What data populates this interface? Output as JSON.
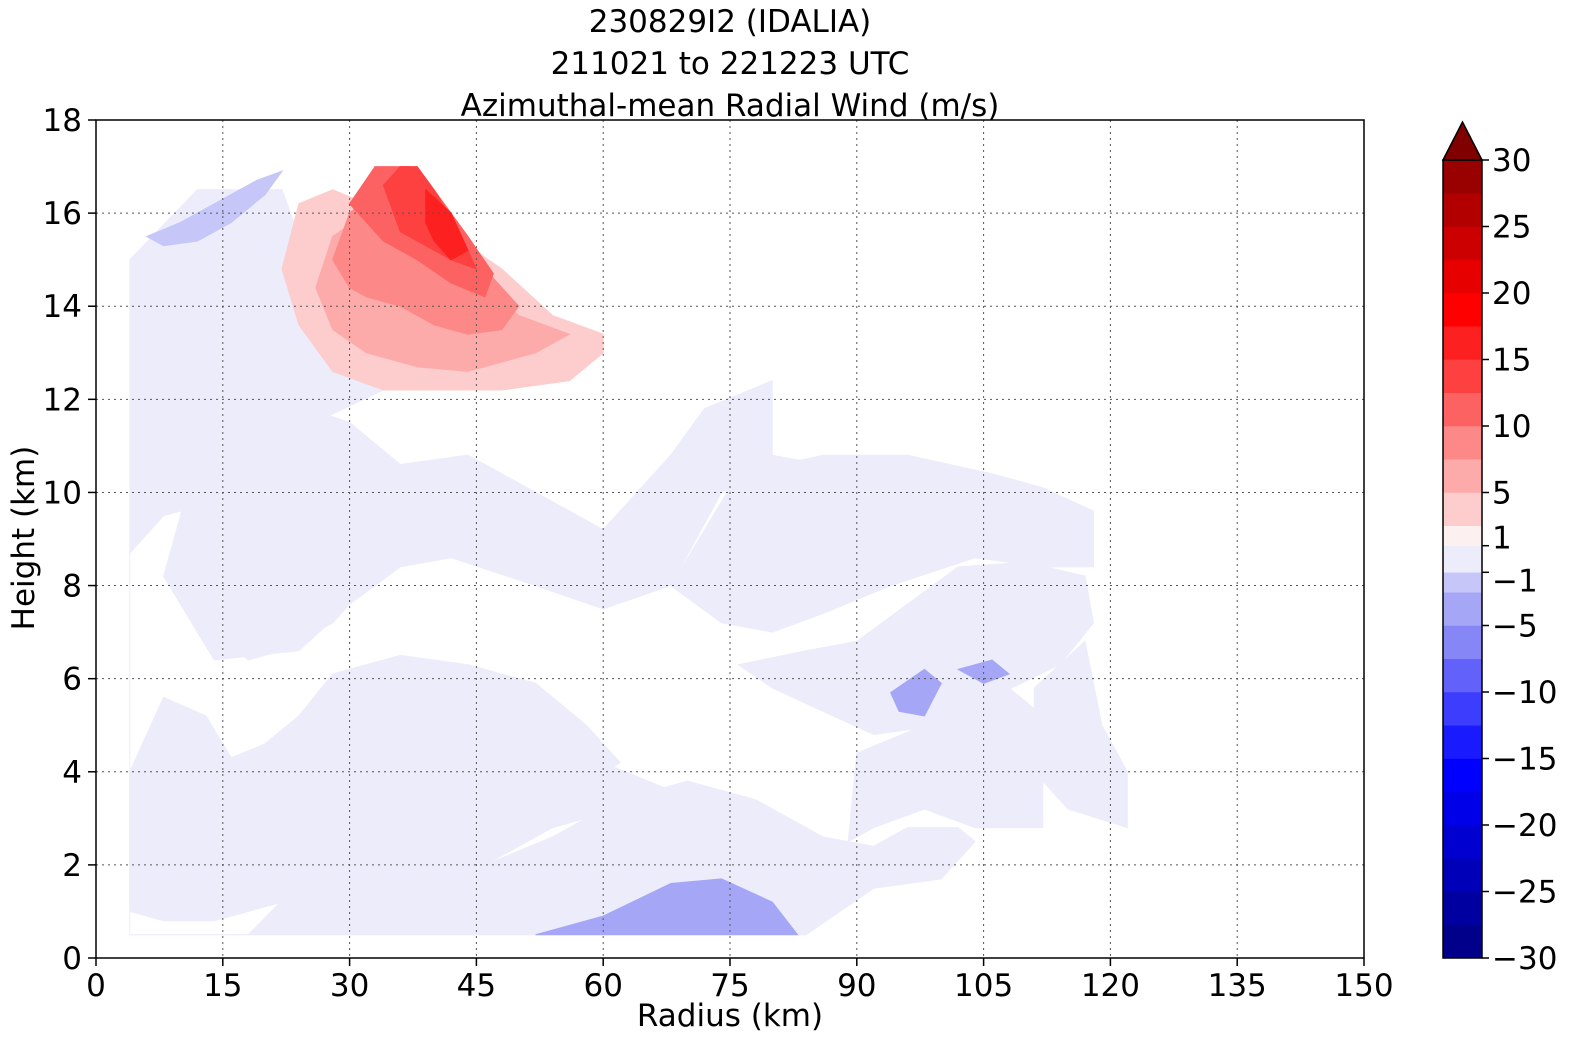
{
  "chart_data": {
    "type": "heatmap",
    "title": [
      "230829I2 (IDALIA)",
      "211021 to 221223 UTC",
      "Azimuthal-mean Radial Wind (m/s)"
    ],
    "xlabel": "Radius (km)",
    "ylabel": "Height (km)",
    "xlim": [
      0,
      150
    ],
    "ylim": [
      0,
      18
    ],
    "x_ticks": [
      "0",
      "15",
      "30",
      "45",
      "60",
      "75",
      "90",
      "105",
      "120",
      "135",
      "150"
    ],
    "y_ticks": [
      "0",
      "2",
      "4",
      "6",
      "8",
      "10",
      "12",
      "14",
      "16",
      "18"
    ],
    "grid": true,
    "colorbar": {
      "levels": [
        -30,
        -27.5,
        -25,
        -22.5,
        -20,
        -17.5,
        -15,
        -12.5,
        -10,
        -7.5,
        -5,
        -2.5,
        -1,
        1,
        2.5,
        5,
        7.5,
        10,
        12.5,
        15,
        17.5,
        20,
        22.5,
        25,
        27.5,
        30
      ],
      "tick_labels": [
        {
          "value": 30,
          "label": "30"
        },
        {
          "value": 25,
          "label": "25"
        },
        {
          "value": 20,
          "label": "20"
        },
        {
          "value": 15,
          "label": "15"
        },
        {
          "value": 10,
          "label": "10"
        },
        {
          "value": 5,
          "label": "5"
        },
        {
          "value": 1,
          "label": "1"
        },
        {
          "value": -1,
          "label": "−1"
        },
        {
          "value": -5,
          "label": "−5"
        },
        {
          "value": -10,
          "label": "−10"
        },
        {
          "value": -15,
          "label": "−15"
        },
        {
          "value": -20,
          "label": "−20"
        },
        {
          "value": -25,
          "label": "−25"
        },
        {
          "value": -30,
          "label": "−30"
        }
      ],
      "colors": [
        "#00008b",
        "#0000a0",
        "#0000b8",
        "#0000d0",
        "#0000e8",
        "#0000ff",
        "#1a1aff",
        "#3d3dfd",
        "#6262fa",
        "#8686f7",
        "#a6a6f7",
        "#c6c6f9",
        "#ececfb",
        "#fdf0f0",
        "#fdcccc",
        "#fdaaaa",
        "#fd8888",
        "#fd6262",
        "#fd4040",
        "#fd2020",
        "#ff0000",
        "#e60000",
        "#cc0000",
        "#b20000",
        "#990000",
        "#800000"
      ],
      "extend": "max"
    },
    "regions": [
      {
        "name": "weak-positive-upper-left",
        "value": 0.5,
        "points": [
          [
            4,
            0.5
          ],
          [
            4,
            15
          ],
          [
            12,
            16.5
          ],
          [
            22,
            16.5
          ],
          [
            25,
            15
          ],
          [
            31,
            12.8
          ],
          [
            42,
            12.5
          ],
          [
            60,
            13
          ],
          [
            56,
            12.4
          ],
          [
            46,
            12.2
          ],
          [
            34,
            12.2
          ],
          [
            27,
            11.6
          ],
          [
            20,
            10.8
          ],
          [
            14,
            9.8
          ],
          [
            8,
            9.5
          ],
          [
            4,
            8.7
          ]
        ]
      },
      {
        "name": "weak-positive-lower-left",
        "value": 0.5,
        "points": [
          [
            4,
            0.5
          ],
          [
            18,
            0.5
          ],
          [
            24,
            1.6
          ],
          [
            28,
            2.6
          ],
          [
            40,
            3.7
          ],
          [
            46,
            4.0
          ],
          [
            52,
            4.3
          ],
          [
            60,
            4.2
          ],
          [
            68,
            3.6
          ],
          [
            72,
            3.2
          ],
          [
            66,
            2.9
          ],
          [
            58,
            3.0
          ],
          [
            54,
            2.8
          ],
          [
            50,
            2.4
          ],
          [
            46,
            2.0
          ],
          [
            40,
            1.5
          ],
          [
            34,
            1.0
          ],
          [
            26,
            0.8
          ],
          [
            20,
            0.5
          ]
        ]
      },
      {
        "name": "weak-positive-lower-left-b",
        "value": 0.5,
        "points": [
          [
            4,
            1.0
          ],
          [
            4,
            4.0
          ],
          [
            8,
            5.6
          ],
          [
            13,
            5.2
          ],
          [
            16,
            4.3
          ],
          [
            20,
            4.6
          ],
          [
            24,
            5.2
          ],
          [
            28,
            6.1
          ],
          [
            36,
            6.5
          ],
          [
            44,
            6.3
          ],
          [
            52,
            5.9
          ],
          [
            58,
            5.0
          ],
          [
            62,
            4.2
          ],
          [
            56,
            3.5
          ],
          [
            48,
            3.2
          ],
          [
            42,
            2.8
          ],
          [
            36,
            2.2
          ],
          [
            30,
            1.7
          ],
          [
            22,
            1.2
          ],
          [
            14,
            0.8
          ],
          [
            8,
            0.8
          ]
        ]
      },
      {
        "name": "weak-positive-center",
        "value": 0.5,
        "points": [
          [
            14,
            7.0
          ],
          [
            16,
            8.6
          ],
          [
            22,
            9.2
          ],
          [
            28,
            9.6
          ],
          [
            34,
            9.5
          ],
          [
            32,
            8.0
          ],
          [
            28,
            7.2
          ],
          [
            22,
            6.6
          ],
          [
            18,
            6.4
          ]
        ]
      },
      {
        "name": "weak-positive-upper-right",
        "value": 0.5,
        "points": [
          [
            68,
            8.0
          ],
          [
            76,
            10.4
          ],
          [
            86,
            10.8
          ],
          [
            96,
            10.8
          ],
          [
            106,
            10.4
          ],
          [
            112,
            10.1
          ],
          [
            118,
            9.6
          ],
          [
            118,
            8.4
          ],
          [
            112,
            8.4
          ],
          [
            104,
            8.6
          ],
          [
            94,
            8.0
          ],
          [
            86,
            7.4
          ],
          [
            80,
            7.0
          ],
          [
            74,
            7.2
          ]
        ]
      },
      {
        "name": "weak-positive-right-lower",
        "value": 0.5,
        "points": [
          [
            89,
            2.5
          ],
          [
            90,
            4.4
          ],
          [
            98,
            5.0
          ],
          [
            104,
            5.4
          ],
          [
            108,
            5.8
          ],
          [
            112,
            5.2
          ],
          [
            112,
            2.8
          ],
          [
            104,
            2.8
          ],
          [
            98,
            3.2
          ],
          [
            92,
            2.8
          ]
        ]
      },
      {
        "name": "weak-positive-far-right-lower",
        "value": 0.5,
        "points": [
          [
            111,
            4.0
          ],
          [
            111,
            5.8
          ],
          [
            117,
            6.8
          ],
          [
            119,
            5.0
          ],
          [
            122,
            4.0
          ],
          [
            122,
            2.8
          ],
          [
            115,
            3.2
          ]
        ]
      },
      {
        "name": "weak-negative-center",
        "value": -0.5,
        "points": [
          [
            10,
            9.5
          ],
          [
            12,
            11.0
          ],
          [
            22,
            12.0
          ],
          [
            30,
            11.5
          ],
          [
            36,
            10.6
          ],
          [
            44,
            10.8
          ],
          [
            52,
            10.0
          ],
          [
            60,
            9.2
          ],
          [
            68,
            10.8
          ],
          [
            72,
            11.8
          ],
          [
            80,
            12.4
          ],
          [
            80,
            10.8
          ],
          [
            86,
            10.6
          ],
          [
            74,
            10.0
          ],
          [
            68,
            8.0
          ],
          [
            60,
            7.5
          ],
          [
            52,
            8.0
          ],
          [
            42,
            8.6
          ],
          [
            36,
            8.4
          ],
          [
            30,
            7.6
          ],
          [
            24,
            6.6
          ],
          [
            14,
            6.4
          ],
          [
            8,
            8.2
          ]
        ]
      },
      {
        "name": "weak-negative-lower-mid",
        "value": -0.5,
        "points": [
          [
            20,
            0.5
          ],
          [
            28,
            0.9
          ],
          [
            38,
            1.4
          ],
          [
            46,
            2.0
          ],
          [
            54,
            2.6
          ],
          [
            62,
            3.4
          ],
          [
            70,
            3.8
          ],
          [
            78,
            3.4
          ],
          [
            86,
            2.6
          ],
          [
            92,
            2.4
          ],
          [
            96,
            2.8
          ],
          [
            102,
            2.8
          ],
          [
            104,
            2.5
          ],
          [
            100,
            1.7
          ],
          [
            92,
            1.5
          ],
          [
            84,
            0.5
          ],
          [
            60,
            0.5
          ]
        ]
      },
      {
        "name": "weak-negative-right-mid",
        "value": -0.5,
        "points": [
          [
            76,
            6.3
          ],
          [
            84,
            6.6
          ],
          [
            90,
            6.8
          ],
          [
            96,
            7.6
          ],
          [
            102,
            8.4
          ],
          [
            110,
            8.5
          ],
          [
            117,
            8.2
          ],
          [
            118,
            7.2
          ],
          [
            114,
            6.3
          ],
          [
            106,
            5.6
          ],
          [
            100,
            5.0
          ],
          [
            92,
            4.8
          ],
          [
            86,
            5.3
          ],
          [
            80,
            5.8
          ]
        ]
      },
      {
        "name": "weak-negative-upper-left-tip",
        "value": -2,
        "points": [
          [
            6,
            15.5
          ],
          [
            10,
            15.8
          ],
          [
            14,
            16.2
          ],
          [
            19,
            16.7
          ],
          [
            22,
            16.9
          ],
          [
            20,
            16.4
          ],
          [
            16,
            15.8
          ],
          [
            12,
            15.4
          ],
          [
            8,
            15.3
          ]
        ]
      },
      {
        "name": "weak-negative-lower-bottom",
        "value": -3,
        "points": [
          [
            52,
            0.5
          ],
          [
            60,
            0.9
          ],
          [
            68,
            1.6
          ],
          [
            74,
            1.7
          ],
          [
            80,
            1.2
          ],
          [
            83,
            0.5
          ]
        ]
      },
      {
        "name": "weak-negative-right-patch",
        "value": -3,
        "points": [
          [
            94,
            5.7
          ],
          [
            98,
            6.2
          ],
          [
            100,
            5.9
          ],
          [
            98,
            5.2
          ],
          [
            95,
            5.3
          ]
        ]
      },
      {
        "name": "weak-negative-right-patch-b",
        "value": -3,
        "points": [
          [
            102,
            6.2
          ],
          [
            106,
            6.4
          ],
          [
            108,
            6.1
          ],
          [
            105,
            5.9
          ]
        ]
      },
      {
        "name": "positive-upper-core-1",
        "value": 2.5,
        "points": [
          [
            22,
            14.8
          ],
          [
            24,
            16.2
          ],
          [
            28,
            16.5
          ],
          [
            32,
            16.2
          ],
          [
            40,
            15.8
          ],
          [
            48,
            14.8
          ],
          [
            54,
            13.8
          ],
          [
            60,
            13.4
          ],
          [
            60,
            13.0
          ],
          [
            56,
            12.4
          ],
          [
            48,
            12.2
          ],
          [
            40,
            12.2
          ],
          [
            34,
            12.2
          ],
          [
            28,
            12.6
          ],
          [
            24,
            13.6
          ]
        ]
      },
      {
        "name": "positive-upper-core-2",
        "value": 5,
        "points": [
          [
            26,
            14.4
          ],
          [
            28,
            15.5
          ],
          [
            32,
            16.0
          ],
          [
            38,
            15.6
          ],
          [
            44,
            14.8
          ],
          [
            50,
            13.8
          ],
          [
            56,
            13.4
          ],
          [
            52,
            13.0
          ],
          [
            44,
            12.6
          ],
          [
            38,
            12.7
          ],
          [
            32,
            13.0
          ],
          [
            28,
            13.5
          ]
        ]
      },
      {
        "name": "positive-upper-core-3",
        "value": 7.5,
        "points": [
          [
            28,
            15.0
          ],
          [
            30,
            16.0
          ],
          [
            34,
            16.6
          ],
          [
            38,
            16.3
          ],
          [
            42,
            15.6
          ],
          [
            46,
            14.8
          ],
          [
            50,
            14.0
          ],
          [
            48,
            13.5
          ],
          [
            44,
            13.4
          ],
          [
            40,
            13.6
          ],
          [
            36,
            14.0
          ],
          [
            32,
            14.2
          ],
          [
            30,
            14.4
          ]
        ]
      },
      {
        "name": "positive-upper-core-4",
        "value": 10,
        "points": [
          [
            30,
            16.2
          ],
          [
            33,
            17.0
          ],
          [
            37,
            17.0
          ],
          [
            40,
            16.5
          ],
          [
            44,
            15.5
          ],
          [
            47,
            14.7
          ],
          [
            46,
            14.2
          ],
          [
            42,
            14.5
          ],
          [
            38,
            15.0
          ],
          [
            34,
            15.4
          ],
          [
            32,
            15.8
          ]
        ]
      },
      {
        "name": "positive-upper-core-5",
        "value": 12.5,
        "points": [
          [
            34,
            16.6
          ],
          [
            36,
            17.0
          ],
          [
            38,
            17.0
          ],
          [
            40,
            16.5
          ],
          [
            43,
            15.6
          ],
          [
            45,
            14.8
          ],
          [
            42,
            15.0
          ],
          [
            39,
            15.3
          ],
          [
            36,
            15.6
          ]
        ]
      },
      {
        "name": "positive-upper-core-6",
        "value": 15,
        "points": [
          [
            39,
            16.5
          ],
          [
            42,
            16.0
          ],
          [
            44,
            15.2
          ],
          [
            42,
            15.0
          ],
          [
            40,
            15.4
          ],
          [
            39,
            15.8
          ]
        ]
      }
    ]
  }
}
